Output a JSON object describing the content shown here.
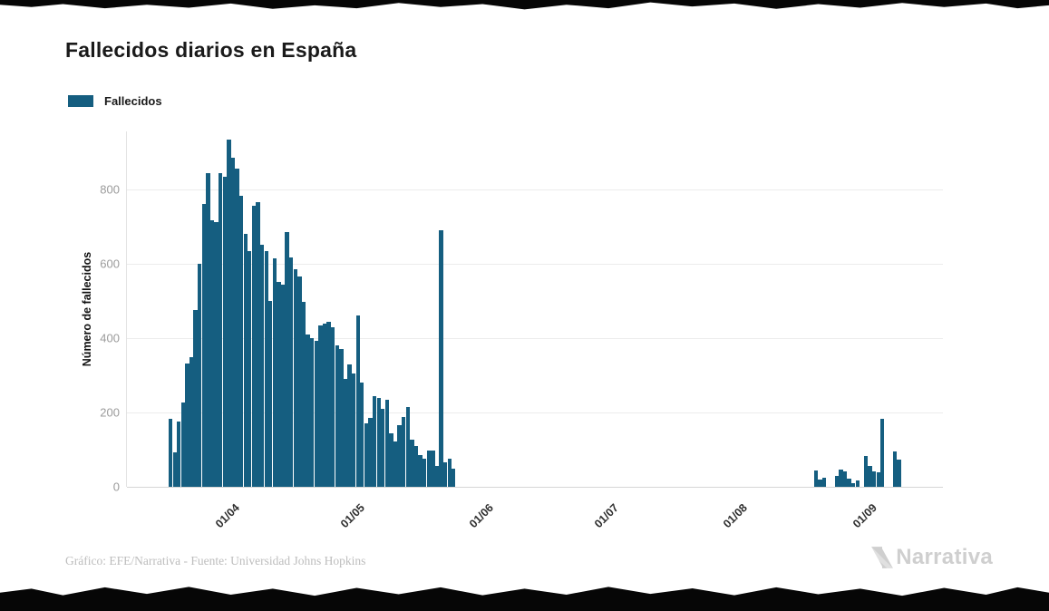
{
  "page": {
    "background": "#ffffff"
  },
  "chart_data": {
    "type": "bar",
    "title": "Fallecidos diarios en España",
    "legend_label": "Fallecidos",
    "xlabel": "",
    "ylabel": "Número de fallecidos",
    "bar_color": "#155e80",
    "grid": "horizontal",
    "legend_position": "top-left",
    "y_ticks": [
      0,
      200,
      400,
      600,
      800
    ],
    "ylim": [
      0,
      956
    ],
    "x_tick_labels": [
      "01/04",
      "01/05",
      "01/06",
      "01/07",
      "01/08",
      "01/09"
    ],
    "x_tick_day_offsets": [
      24,
      54,
      85,
      115,
      146,
      177
    ],
    "x_domain_days": 196,
    "series_start_date": "18/03/2020",
    "series_start_day_offset": 10,
    "values": [
      182,
      92,
      175,
      228,
      332,
      348,
      475,
      600,
      760,
      845,
      718,
      712,
      845,
      833,
      935,
      885,
      855,
      783,
      680,
      635,
      755,
      765,
      650,
      633,
      500,
      615,
      550,
      545,
      685,
      618,
      585,
      565,
      497,
      410,
      400,
      392,
      435,
      440,
      445,
      430,
      380,
      370,
      290,
      330,
      305,
      460,
      280,
      170,
      185,
      245,
      240,
      210,
      235,
      143,
      123,
      165,
      188,
      215,
      128,
      110,
      85,
      75,
      98,
      97,
      55,
      690,
      65,
      75,
      48,
      0,
      0,
      0,
      0,
      0,
      0,
      0,
      0,
      0,
      0,
      0,
      0,
      0,
      0,
      0,
      0,
      0,
      0,
      0,
      0,
      0,
      0,
      0,
      0,
      0,
      0,
      0,
      0,
      0,
      0,
      0,
      0,
      0,
      0,
      0,
      0,
      0,
      0,
      0,
      0,
      0,
      0,
      0,
      0,
      0,
      0,
      0,
      0,
      0,
      0,
      0,
      0,
      0,
      0,
      0,
      0,
      0,
      0,
      0,
      0,
      0,
      0,
      0,
      0,
      0,
      0,
      0,
      0,
      0,
      0,
      0,
      0,
      0,
      0,
      0,
      0,
      0,
      0,
      0,
      0,
      0,
      0,
      0,
      0,
      0,
      0,
      45,
      20,
      25,
      0,
      0,
      30,
      47,
      42,
      22,
      10,
      16,
      0,
      84,
      56,
      41,
      40,
      182,
      0,
      0,
      95,
      74
    ]
  },
  "footer": {
    "credit": "Gráfico: EFE/Narrativa - Fuente: Universidad Johns Hopkins",
    "brand": "Narrativa"
  }
}
